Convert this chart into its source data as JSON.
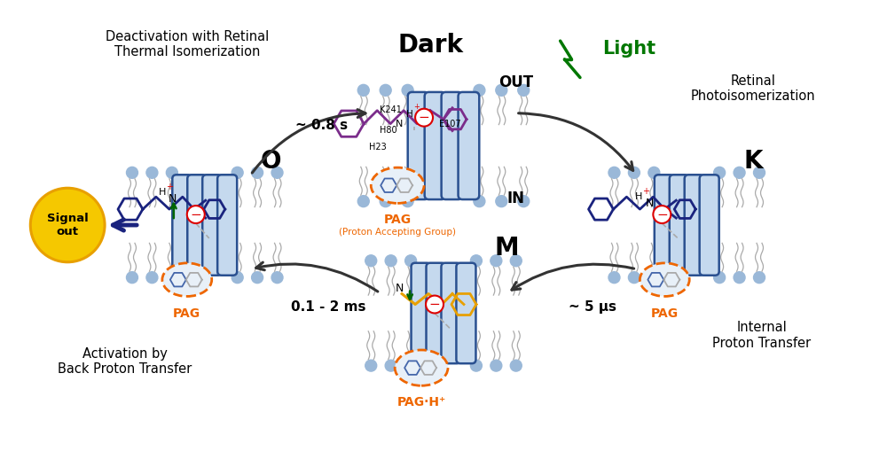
{
  "bg_color": "#ffffff",
  "dark_label": "Dark",
  "out_label": "OUT",
  "in_label": "IN",
  "k_label": "K",
  "o_label": "O",
  "m_label": "M",
  "light_label": "Light",
  "deactivation_text": "Deactivation with Retinal\nThermal Isomerization",
  "retinal_photo_text": "Retinal\nPhotoisomerization",
  "back_proton_text": "Activation by\nBack Proton Transfer",
  "internal_proton_text": "Internal\nProton Transfer",
  "time_08s": "~ 0.8 s",
  "time_5us": "~ 5 μs",
  "time_01_2ms": "0.1 - 2 ms",
  "pag_accepting": "(Proton Accepting Group)",
  "signal_out": "Signal\nout",
  "membrane_color": "#c5d9ee",
  "membrane_border": "#2a5090",
  "lipid_head_color": "#9ab8d8",
  "lipid_tail_color": "#aaaaaa",
  "retinal_dark_color": "#7b2d8b",
  "retinal_k_color": "#1a237e",
  "retinal_o_color": "#1a237e",
  "retinal_m_color": "#e8a000",
  "retinal_m_ring_color": "#e8a000",
  "pag_circle_color": "#ee6600",
  "pag_fill_color": "#e8f0f8",
  "pag_text_color": "#ee6600",
  "signal_circle_color": "#f5c800",
  "signal_border_color": "#e8a000",
  "light_color": "#007700",
  "arrow_color": "#333333",
  "blue_arrow_color": "#1a237e",
  "red_color": "#dd0000",
  "green_color": "#006600",
  "gray_color": "#aaaaaa"
}
